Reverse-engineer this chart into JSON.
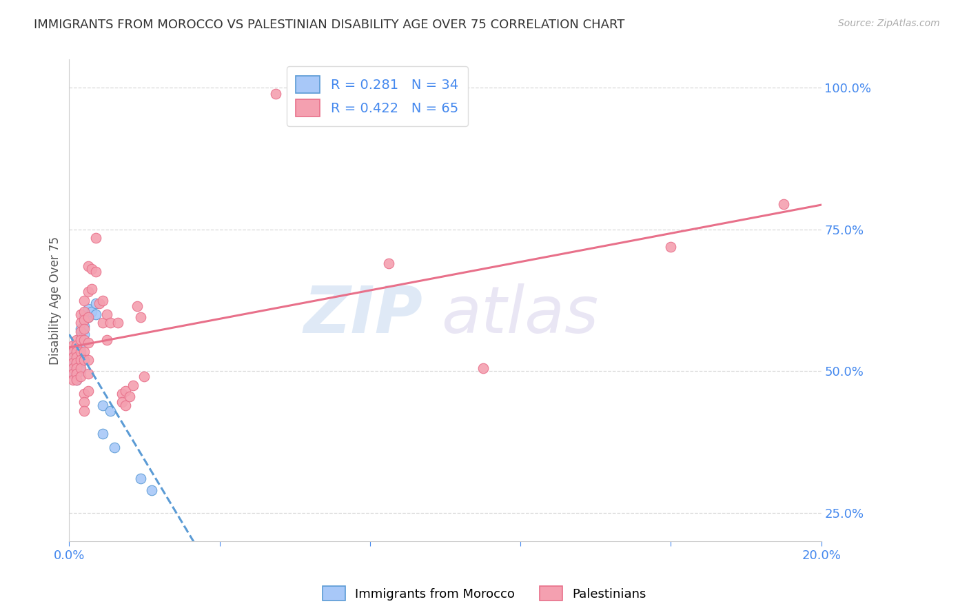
{
  "title": "IMMIGRANTS FROM MOROCCO VS PALESTINIAN DISABILITY AGE OVER 75 CORRELATION CHART",
  "source": "Source: ZipAtlas.com",
  "ylabel": "Disability Age Over 75",
  "ytick_labels": [
    "100.0%",
    "75.0%",
    "50.0%",
    "25.0%"
  ],
  "ytick_values": [
    1.0,
    0.75,
    0.5,
    0.25
  ],
  "morocco_color": "#a8c8f8",
  "palestinian_color": "#f4a0b0",
  "trendline_morocco_color": "#5b9bd5",
  "trendline_palestinian_color": "#e8708a",
  "watermark_zip": "ZIP",
  "watermark_atlas": "atlas",
  "scatter_morocco": [
    [
      0.001,
      0.535
    ],
    [
      0.001,
      0.52
    ],
    [
      0.001,
      0.515
    ],
    [
      0.001,
      0.51
    ],
    [
      0.001,
      0.505
    ],
    [
      0.001,
      0.5
    ],
    [
      0.001,
      0.495
    ],
    [
      0.002,
      0.545
    ],
    [
      0.002,
      0.535
    ],
    [
      0.002,
      0.525
    ],
    [
      0.002,
      0.515
    ],
    [
      0.002,
      0.505
    ],
    [
      0.002,
      0.495
    ],
    [
      0.002,
      0.485
    ],
    [
      0.003,
      0.575
    ],
    [
      0.003,
      0.56
    ],
    [
      0.003,
      0.545
    ],
    [
      0.003,
      0.53
    ],
    [
      0.003,
      0.515
    ],
    [
      0.003,
      0.5
    ],
    [
      0.004,
      0.595
    ],
    [
      0.004,
      0.58
    ],
    [
      0.004,
      0.565
    ],
    [
      0.005,
      0.61
    ],
    [
      0.005,
      0.595
    ],
    [
      0.006,
      0.605
    ],
    [
      0.007,
      0.62
    ],
    [
      0.007,
      0.6
    ],
    [
      0.009,
      0.44
    ],
    [
      0.009,
      0.39
    ],
    [
      0.011,
      0.43
    ],
    [
      0.012,
      0.365
    ],
    [
      0.019,
      0.31
    ],
    [
      0.022,
      0.29
    ]
  ],
  "scatter_palestinian": [
    [
      0.001,
      0.545
    ],
    [
      0.001,
      0.535
    ],
    [
      0.001,
      0.525
    ],
    [
      0.001,
      0.515
    ],
    [
      0.001,
      0.505
    ],
    [
      0.001,
      0.495
    ],
    [
      0.001,
      0.485
    ],
    [
      0.002,
      0.555
    ],
    [
      0.002,
      0.545
    ],
    [
      0.002,
      0.535
    ],
    [
      0.002,
      0.525
    ],
    [
      0.002,
      0.515
    ],
    [
      0.002,
      0.505
    ],
    [
      0.002,
      0.495
    ],
    [
      0.002,
      0.485
    ],
    [
      0.003,
      0.6
    ],
    [
      0.003,
      0.585
    ],
    [
      0.003,
      0.57
    ],
    [
      0.003,
      0.555
    ],
    [
      0.003,
      0.535
    ],
    [
      0.003,
      0.52
    ],
    [
      0.003,
      0.505
    ],
    [
      0.003,
      0.49
    ],
    [
      0.004,
      0.625
    ],
    [
      0.004,
      0.605
    ],
    [
      0.004,
      0.59
    ],
    [
      0.004,
      0.575
    ],
    [
      0.004,
      0.555
    ],
    [
      0.004,
      0.535
    ],
    [
      0.004,
      0.52
    ],
    [
      0.004,
      0.46
    ],
    [
      0.004,
      0.445
    ],
    [
      0.004,
      0.43
    ],
    [
      0.005,
      0.685
    ],
    [
      0.005,
      0.64
    ],
    [
      0.005,
      0.595
    ],
    [
      0.005,
      0.55
    ],
    [
      0.005,
      0.52
    ],
    [
      0.005,
      0.495
    ],
    [
      0.005,
      0.465
    ],
    [
      0.006,
      0.68
    ],
    [
      0.006,
      0.645
    ],
    [
      0.007,
      0.735
    ],
    [
      0.007,
      0.675
    ],
    [
      0.008,
      0.62
    ],
    [
      0.009,
      0.625
    ],
    [
      0.009,
      0.585
    ],
    [
      0.01,
      0.6
    ],
    [
      0.01,
      0.555
    ],
    [
      0.011,
      0.585
    ],
    [
      0.013,
      0.585
    ],
    [
      0.014,
      0.46
    ],
    [
      0.014,
      0.445
    ],
    [
      0.015,
      0.465
    ],
    [
      0.015,
      0.44
    ],
    [
      0.016,
      0.455
    ],
    [
      0.017,
      0.475
    ],
    [
      0.018,
      0.615
    ],
    [
      0.019,
      0.595
    ],
    [
      0.02,
      0.49
    ],
    [
      0.055,
      0.99
    ],
    [
      0.085,
      0.69
    ],
    [
      0.11,
      0.505
    ],
    [
      0.16,
      0.72
    ],
    [
      0.19,
      0.795
    ]
  ],
  "xlim": [
    0.0,
    0.2
  ],
  "ylim": [
    0.2,
    1.05
  ],
  "xtick_positions": [
    0.0,
    0.04,
    0.08,
    0.12,
    0.16,
    0.2
  ],
  "background_color": "#ffffff",
  "grid_color": "#d8d8d8",
  "title_color": "#333333",
  "tick_color": "#4488ee",
  "legend_text_color": "#4488ee"
}
